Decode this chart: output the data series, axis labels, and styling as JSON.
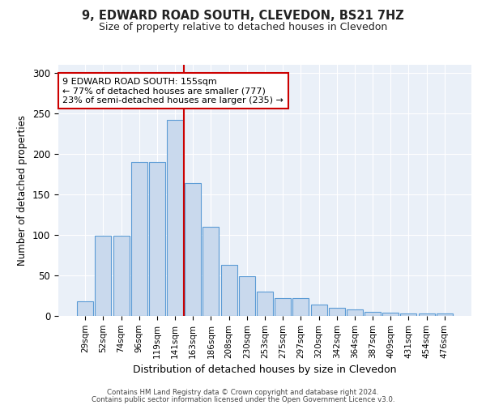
{
  "title1": "9, EDWARD ROAD SOUTH, CLEVEDON, BS21 7HZ",
  "title2": "Size of property relative to detached houses in Clevedon",
  "xlabel": "Distribution of detached houses by size in Clevedon",
  "ylabel": "Number of detached properties",
  "bar_labels": [
    "29sqm",
    "52sqm",
    "74sqm",
    "96sqm",
    "119sqm",
    "141sqm",
    "163sqm",
    "186sqm",
    "208sqm",
    "230sqm",
    "253sqm",
    "275sqm",
    "297sqm",
    "320sqm",
    "342sqm",
    "364sqm",
    "387sqm",
    "409sqm",
    "431sqm",
    "454sqm",
    "476sqm"
  ],
  "bar_values": [
    18,
    99,
    99,
    190,
    190,
    242,
    164,
    110,
    63,
    49,
    30,
    22,
    22,
    14,
    10,
    8,
    5,
    4,
    3,
    3,
    3
  ],
  "bar_color": "#c9d9ed",
  "bar_edge_color": "#5b9bd5",
  "vline_color": "#cc0000",
  "annotation_text": "9 EDWARD ROAD SOUTH: 155sqm\n← 77% of detached houses are smaller (777)\n23% of semi-detached houses are larger (235) →",
  "annotation_box_color": "#ffffff",
  "annotation_box_edge_color": "#cc0000",
  "ylim": [
    0,
    310
  ],
  "yticks": [
    0,
    50,
    100,
    150,
    200,
    250,
    300
  ],
  "background_color": "#eaf0f8",
  "footer1": "Contains HM Land Registry data © Crown copyright and database right 2024.",
  "footer2": "Contains public sector information licensed under the Open Government Licence v3.0."
}
